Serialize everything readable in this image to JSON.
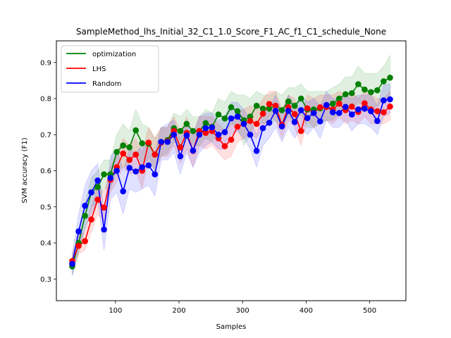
{
  "chart_data": {
    "type": "line",
    "title": "SampleMethod_lhs_Initial_32_C1_1.0_Score_F1_AC_f1_C1_schedule_None",
    "xlabel": "Samples",
    "ylabel": "SVM accuracy (F1)",
    "xlim": [
      7,
      557
    ],
    "ylim": [
      0.24,
      0.96
    ],
    "xticks": [
      100,
      200,
      300,
      400,
      500
    ],
    "yticks": [
      0.3,
      0.4,
      0.5,
      0.6,
      0.7,
      0.8,
      0.9
    ],
    "x": [
      32,
      42,
      52,
      62,
      72,
      82,
      92,
      102,
      112,
      122,
      132,
      142,
      152,
      162,
      172,
      182,
      192,
      202,
      212,
      222,
      232,
      242,
      252,
      262,
      272,
      282,
      292,
      302,
      312,
      322,
      332,
      342,
      352,
      362,
      372,
      382,
      392,
      402,
      412,
      422,
      432,
      442,
      452,
      462,
      472,
      482,
      492,
      502,
      512,
      522,
      532
    ],
    "legend_position": "top-left",
    "grid": false,
    "series": [
      {
        "name": "optimization",
        "color": "#008000",
        "values": [
          0.335,
          0.4,
          0.475,
          0.54,
          0.555,
          0.59,
          0.59,
          0.652,
          0.67,
          0.665,
          0.712,
          0.676,
          0.675,
          0.645,
          0.68,
          0.685,
          0.718,
          0.71,
          0.73,
          0.71,
          0.71,
          0.732,
          0.722,
          0.756,
          0.745,
          0.776,
          0.765,
          0.74,
          0.75,
          0.78,
          0.772,
          0.772,
          0.78,
          0.768,
          0.792,
          0.78,
          0.8,
          0.77,
          0.77,
          0.773,
          0.78,
          0.786,
          0.8,
          0.812,
          0.815,
          0.84,
          0.825,
          0.818,
          0.823,
          0.848,
          0.858
        ],
        "lower": [
          0.31,
          0.37,
          0.44,
          0.5,
          0.51,
          0.55,
          0.55,
          0.6,
          0.61,
          0.62,
          0.65,
          0.62,
          0.63,
          0.6,
          0.64,
          0.65,
          0.68,
          0.67,
          0.69,
          0.67,
          0.67,
          0.69,
          0.68,
          0.71,
          0.7,
          0.73,
          0.72,
          0.67,
          0.7,
          0.74,
          0.73,
          0.73,
          0.74,
          0.72,
          0.75,
          0.73,
          0.76,
          0.72,
          0.72,
          0.73,
          0.74,
          0.74,
          0.76,
          0.77,
          0.77,
          0.79,
          0.78,
          0.77,
          0.78,
          0.8,
          0.8
        ],
        "upper": [
          0.36,
          0.43,
          0.51,
          0.58,
          0.6,
          0.63,
          0.63,
          0.7,
          0.73,
          0.71,
          0.77,
          0.73,
          0.72,
          0.69,
          0.72,
          0.72,
          0.76,
          0.75,
          0.77,
          0.75,
          0.75,
          0.77,
          0.76,
          0.8,
          0.79,
          0.82,
          0.81,
          0.81,
          0.8,
          0.82,
          0.81,
          0.81,
          0.82,
          0.81,
          0.83,
          0.83,
          0.84,
          0.82,
          0.82,
          0.82,
          0.82,
          0.83,
          0.84,
          0.86,
          0.86,
          0.89,
          0.87,
          0.87,
          0.87,
          0.89,
          0.92
        ]
      },
      {
        "name": "LHS",
        "color": "#ff0000",
        "values": [
          0.35,
          0.392,
          0.405,
          0.465,
          0.52,
          0.498,
          0.575,
          0.61,
          0.648,
          0.63,
          0.645,
          0.6,
          0.678,
          0.645,
          0.678,
          0.682,
          0.71,
          0.665,
          0.705,
          0.655,
          0.71,
          0.705,
          0.71,
          0.69,
          0.668,
          0.686,
          0.722,
          0.73,
          0.738,
          0.73,
          0.758,
          0.785,
          0.78,
          0.727,
          0.776,
          0.757,
          0.71,
          0.773,
          0.76,
          0.776,
          0.777,
          0.77,
          0.786,
          0.768,
          0.778,
          0.763,
          0.787,
          0.77,
          0.765,
          0.762,
          0.778
        ],
        "lower": [
          0.33,
          0.37,
          0.38,
          0.43,
          0.48,
          0.46,
          0.54,
          0.57,
          0.61,
          0.59,
          0.6,
          0.55,
          0.64,
          0.6,
          0.64,
          0.64,
          0.67,
          0.62,
          0.66,
          0.61,
          0.67,
          0.66,
          0.67,
          0.65,
          0.63,
          0.64,
          0.68,
          0.69,
          0.7,
          0.69,
          0.72,
          0.75,
          0.74,
          0.69,
          0.74,
          0.72,
          0.67,
          0.74,
          0.72,
          0.74,
          0.74,
          0.73,
          0.75,
          0.73,
          0.74,
          0.73,
          0.75,
          0.73,
          0.73,
          0.73,
          0.74
        ],
        "upper": [
          0.37,
          0.42,
          0.43,
          0.5,
          0.56,
          0.54,
          0.61,
          0.65,
          0.69,
          0.67,
          0.69,
          0.65,
          0.72,
          0.69,
          0.72,
          0.72,
          0.75,
          0.71,
          0.75,
          0.7,
          0.75,
          0.75,
          0.75,
          0.73,
          0.71,
          0.73,
          0.76,
          0.77,
          0.78,
          0.77,
          0.8,
          0.82,
          0.82,
          0.77,
          0.81,
          0.8,
          0.75,
          0.81,
          0.8,
          0.81,
          0.81,
          0.81,
          0.82,
          0.81,
          0.82,
          0.8,
          0.82,
          0.81,
          0.8,
          0.8,
          0.82
        ]
      },
      {
        "name": "Random",
        "color": "#0000ff",
        "values": [
          0.342,
          0.432,
          0.503,
          0.54,
          0.573,
          0.437,
          0.58,
          0.6,
          0.543,
          0.608,
          0.598,
          0.61,
          0.615,
          0.59,
          0.68,
          0.68,
          0.7,
          0.64,
          0.698,
          0.656,
          0.7,
          0.718,
          0.72,
          0.7,
          0.707,
          0.745,
          0.75,
          0.73,
          0.7,
          0.655,
          0.718,
          0.733,
          0.766,
          0.723,
          0.766,
          0.735,
          0.768,
          0.746,
          0.76,
          0.737,
          0.782,
          0.762,
          0.76,
          0.777,
          0.756,
          0.77,
          0.772,
          0.765,
          0.738,
          0.795,
          0.798
        ],
        "lower": [
          0.31,
          0.38,
          0.44,
          0.48,
          0.52,
          0.38,
          0.52,
          0.54,
          0.48,
          0.55,
          0.54,
          0.55,
          0.56,
          0.53,
          0.63,
          0.63,
          0.65,
          0.59,
          0.65,
          0.61,
          0.65,
          0.67,
          0.68,
          0.66,
          0.66,
          0.7,
          0.71,
          0.69,
          0.66,
          0.61,
          0.67,
          0.69,
          0.72,
          0.68,
          0.72,
          0.69,
          0.72,
          0.7,
          0.72,
          0.69,
          0.74,
          0.72,
          0.72,
          0.74,
          0.71,
          0.73,
          0.73,
          0.72,
          0.7,
          0.75,
          0.76
        ],
        "upper": [
          0.37,
          0.48,
          0.56,
          0.6,
          0.62,
          0.49,
          0.64,
          0.66,
          0.6,
          0.66,
          0.65,
          0.67,
          0.67,
          0.65,
          0.72,
          0.73,
          0.74,
          0.69,
          0.74,
          0.7,
          0.75,
          0.76,
          0.76,
          0.74,
          0.75,
          0.79,
          0.79,
          0.77,
          0.74,
          0.7,
          0.76,
          0.77,
          0.81,
          0.76,
          0.81,
          0.78,
          0.81,
          0.79,
          0.8,
          0.78,
          0.82,
          0.8,
          0.8,
          0.81,
          0.8,
          0.81,
          0.81,
          0.81,
          0.78,
          0.84,
          0.84
        ]
      }
    ]
  }
}
